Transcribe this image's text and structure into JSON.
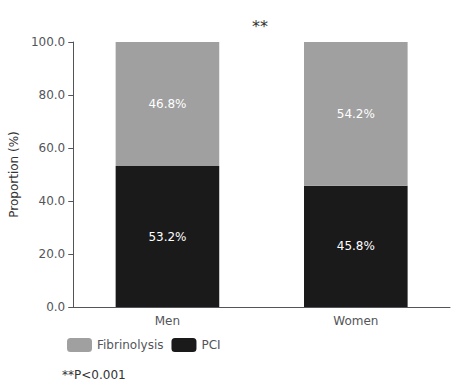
{
  "chart_data": {
    "type": "bar",
    "stacked": true,
    "categories": [
      "Men",
      "Women"
    ],
    "series": [
      {
        "name": "PCI",
        "color": "#1a1a1a",
        "values": [
          53.2,
          45.8
        ],
        "value_labels": [
          "53.2%",
          "45.8%"
        ]
      },
      {
        "name": "Fibrinolysis",
        "color": "#a0a0a0",
        "values": [
          46.8,
          54.2
        ],
        "value_labels": [
          "46.8%",
          "54.2%"
        ]
      }
    ],
    "ylabel": "Proportion (%)",
    "ylim": [
      0,
      100
    ],
    "yticks": [
      {
        "value": 0,
        "label": "0.0"
      },
      {
        "value": 20,
        "label": "20.0"
      },
      {
        "value": 40,
        "label": "40.0"
      },
      {
        "value": 60,
        "label": "60.0"
      },
      {
        "value": 80,
        "label": "80.0"
      },
      {
        "value": 100,
        "label": "100.0"
      }
    ],
    "annotations": [
      "**",
      "**P<0.001"
    ],
    "data_labels": true,
    "grid": false,
    "legend": "bottom"
  }
}
